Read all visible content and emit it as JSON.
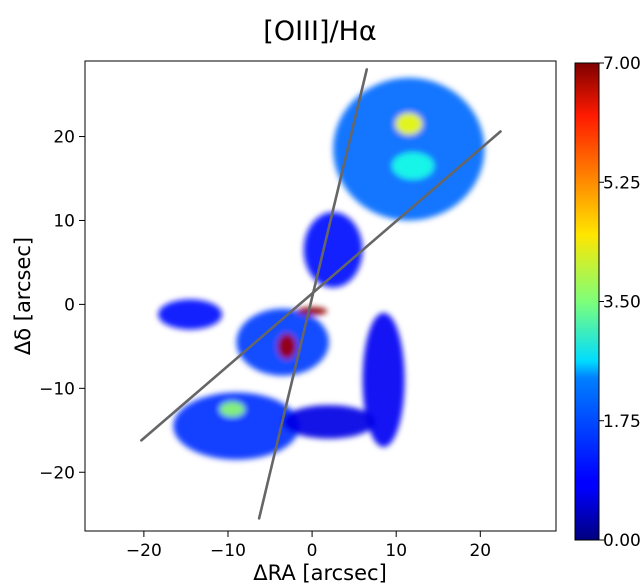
{
  "chart_data": {
    "type": "heatmap",
    "title": "[OIII]/Hα",
    "xlabel": "ΔRA [arcsec]",
    "ylabel": "Δδ [arcsec]",
    "xlim": [
      -27,
      29
    ],
    "ylim": [
      -27,
      29
    ],
    "xticks": [
      -20,
      -10,
      0,
      10,
      20
    ],
    "yticks": [
      -20,
      -10,
      0,
      10,
      20
    ],
    "xtick_labels": [
      "−20",
      "−10",
      "0",
      "10",
      "20"
    ],
    "ytick_labels": [
      "−20",
      "−10",
      "0",
      "10",
      "20"
    ],
    "grid": false,
    "colormap": "jet",
    "colorbar": {
      "min": 0.0,
      "max": 7.0,
      "ticks": [
        0.0,
        1.75,
        3.5,
        5.25,
        7.0
      ],
      "tick_labels": [
        "0.00",
        "1.75",
        "3.50",
        "5.25",
        "7.00"
      ]
    },
    "emission_regions": [
      {
        "name": "north-east-lobe",
        "cx": 11.5,
        "cy": 18.5,
        "rx": 9.0,
        "ry": 8.5,
        "level": 1.6
      },
      {
        "name": "north-east-peak",
        "cx": 11.5,
        "cy": 21.5,
        "rx": 1.6,
        "ry": 1.3,
        "level": 4.3
      },
      {
        "name": "north-east-knot",
        "cx": 12.0,
        "cy": 16.5,
        "rx": 2.5,
        "ry": 1.6,
        "level": 2.8
      },
      {
        "name": "east-arm",
        "cx": 2.5,
        "cy": 6.5,
        "rx": 3.5,
        "ry": 4.5,
        "level": 1.0
      },
      {
        "name": "west-blob",
        "cx": -14.5,
        "cy": -1.2,
        "rx": 3.8,
        "ry": 1.8,
        "level": 1.0
      },
      {
        "name": "central-region",
        "cx": -3.5,
        "cy": -4.5,
        "rx": 5.5,
        "ry": 4.0,
        "level": 1.3
      },
      {
        "name": "central-peak",
        "cx": -3.0,
        "cy": -5.0,
        "rx": 1.1,
        "ry": 1.5,
        "level": 6.8
      },
      {
        "name": "nucleus",
        "cx": 0.0,
        "cy": -0.8,
        "rx": 1.8,
        "ry": 0.5,
        "level": 6.9
      },
      {
        "name": "south-west-lobe",
        "cx": -9.0,
        "cy": -14.5,
        "rx": 7.5,
        "ry": 4.0,
        "level": 1.2
      },
      {
        "name": "south-west-knot",
        "cx": -9.5,
        "cy": -12.5,
        "rx": 1.5,
        "ry": 0.9,
        "level": 3.6
      },
      {
        "name": "south-east-arc",
        "cx": 8.5,
        "cy": -9.0,
        "rx": 2.5,
        "ry": 8.0,
        "level": 0.8
      },
      {
        "name": "south-arc",
        "cx": 2.0,
        "cy": -14.0,
        "rx": 5.5,
        "ry": 2.0,
        "level": 0.7
      }
    ],
    "lines": [
      {
        "name": "line-1",
        "x": [
          -20.3,
          22.4
        ],
        "y": [
          -16.2,
          20.6
        ]
      },
      {
        "name": "line-2",
        "x": [
          -6.3,
          6.5
        ],
        "y": [
          -25.5,
          28.0
        ]
      }
    ]
  }
}
